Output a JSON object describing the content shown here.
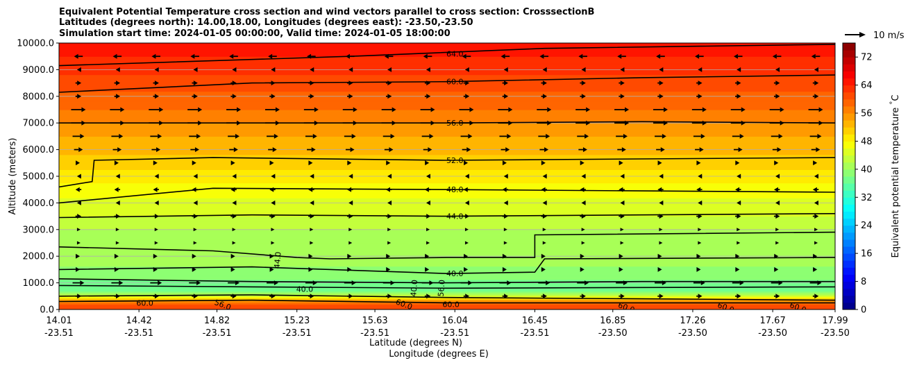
{
  "chart_data": {
    "type": "heatmap",
    "title_lines": [
      "Equivalent Potential Temperature cross section and wind vectors parallel to cross section: CrosssectionB",
      "Latitudes (degrees north): 14.00,18.00, Longitudes (degrees east): -23.50,-23.50",
      "Simulation start time: 2024-01-05 00:00:00, Valid time: 2024-01-05 18:00:00"
    ],
    "ylabel": "Altitude (meters)",
    "xlabel": "Latitude (degrees N)",
    "xlabel2": "Longitude (degrees E)",
    "ylim": [
      0,
      10000
    ],
    "xlim": [
      14.01,
      17.99
    ],
    "y_ticks": [
      {
        "value": 0,
        "label": "0.0"
      },
      {
        "value": 1000,
        "label": "1000.0"
      },
      {
        "value": 2000,
        "label": "2000.0"
      },
      {
        "value": 3000,
        "label": "3000.0"
      },
      {
        "value": 4000,
        "label": "4000.0"
      },
      {
        "value": 5000,
        "label": "5000.0"
      },
      {
        "value": 6000,
        "label": "6000.0"
      },
      {
        "value": 7000,
        "label": "7000.0"
      },
      {
        "value": 8000,
        "label": "8000.0"
      },
      {
        "value": 9000,
        "label": "9000.0"
      },
      {
        "value": 10000,
        "label": "10000.0"
      }
    ],
    "x_ticks": [
      {
        "value": 14.01,
        "lat": "14.01",
        "lon": "-23.51"
      },
      {
        "value": 14.42,
        "lat": "14.42",
        "lon": "-23.51"
      },
      {
        "value": 14.82,
        "lat": "14.82",
        "lon": "-23.51"
      },
      {
        "value": 15.23,
        "lat": "15.23",
        "lon": "-23.51"
      },
      {
        "value": 15.63,
        "lat": "15.63",
        "lon": "-23.51"
      },
      {
        "value": 16.04,
        "lat": "16.04",
        "lon": "-23.51"
      },
      {
        "value": 16.45,
        "lat": "16.45",
        "lon": "-23.51"
      },
      {
        "value": 16.85,
        "lat": "16.85",
        "lon": "-23.50"
      },
      {
        "value": 17.26,
        "lat": "17.26",
        "lon": "-23.50"
      },
      {
        "value": 17.67,
        "lat": "17.67",
        "lon": "-23.50"
      },
      {
        "value": 17.99,
        "lat": "17.99",
        "lon": "-23.50"
      }
    ],
    "grid": "horizontal",
    "colorbar": {
      "label": "Equivalent potential temperature $^\\circ$C",
      "range": [
        0,
        76
      ],
      "ticks": [
        "0",
        "8",
        "16",
        "24",
        "32",
        "40",
        "48",
        "56",
        "64",
        "72"
      ],
      "tick_values": [
        0,
        8,
        16,
        24,
        32,
        40,
        48,
        56,
        64,
        72
      ],
      "colormap": "jet"
    },
    "theta_e_profile": [
      {
        "z": 0,
        "v": 60
      },
      {
        "z": 200,
        "v": 60
      },
      {
        "z": 350,
        "v": 55
      },
      {
        "z": 500,
        "v": 45
      },
      {
        "z": 700,
        "v": 37
      },
      {
        "z": 1000,
        "v": 37
      },
      {
        "z": 1200,
        "v": 39
      },
      {
        "z": 2000,
        "v": 41
      },
      {
        "z": 3000,
        "v": 42
      },
      {
        "z": 3500,
        "v": 44
      },
      {
        "z": 4500,
        "v": 47
      },
      {
        "z": 5500,
        "v": 51
      },
      {
        "z": 6500,
        "v": 54
      },
      {
        "z": 7500,
        "v": 58
      },
      {
        "z": 8500,
        "v": 61
      },
      {
        "z": 9500,
        "v": 64
      },
      {
        "z": 10000,
        "v": 66
      }
    ],
    "contours": [
      {
        "level": "64.0",
        "points": [
          [
            14.01,
            9150
          ],
          [
            15.5,
            9500
          ],
          [
            16.5,
            9800
          ],
          [
            17.99,
            9950
          ]
        ]
      },
      {
        "level": "60.0",
        "points": [
          [
            14.01,
            8150
          ],
          [
            15.0,
            8500
          ],
          [
            16.0,
            8550
          ],
          [
            17.0,
            8700
          ],
          [
            17.99,
            8800
          ]
        ]
      },
      {
        "level": "56.0",
        "points": [
          [
            14.01,
            7000
          ],
          [
            15.0,
            7000
          ],
          [
            16.0,
            7000
          ],
          [
            17.0,
            7050
          ],
          [
            17.99,
            7000
          ]
        ]
      },
      {
        "level": "52.0",
        "points": [
          [
            14.01,
            4600
          ],
          [
            14.18,
            4800
          ],
          [
            14.19,
            5600
          ],
          [
            14.8,
            5700
          ],
          [
            16.0,
            5600
          ],
          [
            17.0,
            5650
          ],
          [
            17.99,
            5700
          ]
        ]
      },
      {
        "level": "48.0",
        "points": [
          [
            14.01,
            4000
          ],
          [
            14.8,
            4550
          ],
          [
            16.0,
            4500
          ],
          [
            17.0,
            4450
          ],
          [
            17.99,
            4400
          ]
        ]
      },
      {
        "level": "44.0",
        "points": [
          [
            14.01,
            3450
          ],
          [
            15.0,
            3550
          ],
          [
            16.0,
            3500
          ],
          [
            17.0,
            3550
          ],
          [
            17.99,
            3600
          ]
        ]
      },
      {
        "level": "44.0",
        "points": [
          [
            14.01,
            2350
          ],
          [
            14.8,
            2200
          ],
          [
            15.23,
            1950
          ],
          [
            15.4,
            1900
          ],
          [
            16.0,
            1950
          ],
          [
            16.45,
            1950
          ],
          [
            16.45,
            2800
          ],
          [
            17.99,
            2900
          ]
        ]
      },
      {
        "level": "40.0",
        "points": [
          [
            14.01,
            1500
          ],
          [
            15.0,
            1600
          ],
          [
            16.0,
            1350
          ],
          [
            16.45,
            1400
          ],
          [
            16.5,
            1900
          ],
          [
            17.99,
            1950
          ]
        ]
      },
      {
        "level": "40.0",
        "points": [
          [
            14.01,
            1150
          ],
          [
            15.0,
            1050
          ],
          [
            16.0,
            1000
          ],
          [
            17.0,
            1050
          ],
          [
            17.99,
            1050
          ]
        ]
      },
      {
        "level": "40.0",
        "points": [
          [
            14.01,
            900
          ],
          [
            15.0,
            850
          ],
          [
            16.0,
            800
          ],
          [
            17.99,
            850
          ]
        ]
      },
      {
        "level": "60.0",
        "points": [
          [
            14.01,
            500
          ],
          [
            15.0,
            550
          ],
          [
            16.0,
            450
          ],
          [
            17.0,
            400
          ],
          [
            17.99,
            350
          ]
        ]
      },
      {
        "level": "60.0",
        "points": [
          [
            14.01,
            300
          ],
          [
            15.0,
            350
          ],
          [
            16.0,
            250
          ],
          [
            17.99,
            250
          ]
        ]
      }
    ],
    "contour_labels": [
      {
        "text": "64.0",
        "x": 16.04,
        "z": 9600,
        "rotate": 0
      },
      {
        "text": "60.0",
        "x": 16.04,
        "z": 8550,
        "rotate": 0
      },
      {
        "text": "56.0",
        "x": 16.04,
        "z": 7000,
        "rotate": 0
      },
      {
        "text": "52.0",
        "x": 16.04,
        "z": 5600,
        "rotate": 0
      },
      {
        "text": "48.0",
        "x": 16.04,
        "z": 4500,
        "rotate": 0
      },
      {
        "text": "44.0",
        "x": 16.04,
        "z": 3500,
        "rotate": 0
      },
      {
        "text": "40.0",
        "x": 16.04,
        "z": 1350,
        "rotate": 0
      },
      {
        "text": "44.0",
        "x": 15.13,
        "z": 1850,
        "rotate": -85
      },
      {
        "text": "40.0",
        "x": 15.27,
        "z": 770,
        "rotate": 0
      },
      {
        "text": "60.0",
        "x": 14.45,
        "z": 250,
        "rotate": 0
      },
      {
        "text": "56.0",
        "x": 14.85,
        "z": 180,
        "rotate": 20
      },
      {
        "text": "60.0",
        "x": 15.78,
        "z": 200,
        "rotate": 20
      },
      {
        "text": "60.0",
        "x": 16.02,
        "z": 200,
        "rotate": 0
      },
      {
        "text": "40.0",
        "x": 15.83,
        "z": 800,
        "rotate": -85
      },
      {
        "text": "56.0",
        "x": 15.97,
        "z": 800,
        "rotate": -85
      },
      {
        "text": "60.0",
        "x": 16.92,
        "z": 80,
        "rotate": 20
      },
      {
        "text": "60.0",
        "x": 17.43,
        "z": 80,
        "rotate": 20
      },
      {
        "text": "60.0",
        "x": 17.8,
        "z": 80,
        "rotate": 20
      }
    ],
    "wind": {
      "reference_label": "10 m/s",
      "levels": [
        {
          "z": 9500,
          "u": -3
        },
        {
          "z": 9000,
          "u": -1
        },
        {
          "z": 8500,
          "u": 2
        },
        {
          "z": 8000,
          "u": 2
        },
        {
          "z": 7500,
          "u": 5
        },
        {
          "z": 7000,
          "u": 5
        },
        {
          "z": 6500,
          "u": 4
        },
        {
          "z": 6000,
          "u": 3
        },
        {
          "z": 5500,
          "u": 1
        },
        {
          "z": 5000,
          "u": -1
        },
        {
          "z": 4500,
          "u": -2
        },
        {
          "z": 4000,
          "u": -1
        },
        {
          "z": 3500,
          "u": 2
        },
        {
          "z": 3000,
          "u": 0.5
        },
        {
          "z": 2500,
          "u": 0.5
        },
        {
          "z": 2000,
          "u": 1
        },
        {
          "z": 1500,
          "u": 1
        },
        {
          "z": 1000,
          "u": 4
        },
        {
          "z": 500,
          "u": 2
        }
      ]
    }
  }
}
